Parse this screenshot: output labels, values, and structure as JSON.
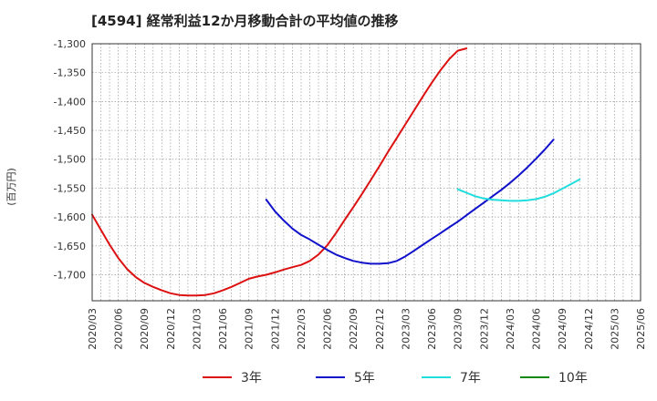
{
  "chart_data": {
    "type": "line",
    "title": "[4594]  経常利益12か月移動合計の平均値の推移",
    "ylabel": "(百万円)",
    "xlabel": "",
    "ylim": [
      -1745,
      -1300
    ],
    "y_ticks": [
      -1300,
      -1350,
      -1400,
      -1450,
      -1500,
      -1550,
      -1600,
      -1650,
      -1700
    ],
    "y_tick_labels": [
      "-1,300",
      "-1,350",
      "-1,400",
      "-1,450",
      "-1,500",
      "-1,550",
      "-1,600",
      "-1,650",
      "-1,700"
    ],
    "x_tick_labels": [
      "2020/03",
      "2020/06",
      "2020/09",
      "2020/12",
      "2021/03",
      "2021/06",
      "2021/09",
      "2021/12",
      "2022/03",
      "2022/06",
      "2022/09",
      "2022/12",
      "2023/03",
      "2023/06",
      "2023/09",
      "2023/12",
      "2024/03",
      "2024/06",
      "2024/09",
      "2024/12",
      "2025/03",
      "2025/06"
    ],
    "grid": true,
    "legend_position": "bottom",
    "series": [
      {
        "name": "3年",
        "color": "#dd1111",
        "start_index": 0,
        "values": [
          -1596,
          -1622,
          -1648,
          -1671,
          -1690,
          -1704,
          -1714,
          -1721,
          -1727,
          -1732,
          -1735,
          -1736,
          -1736,
          -1735,
          -1732,
          -1727,
          -1721,
          -1714,
          -1707,
          -1703,
          -1700,
          -1696,
          -1691,
          -1687,
          -1683,
          -1676,
          -1665,
          -1649,
          -1628,
          -1605,
          -1583,
          -1560,
          -1536,
          -1512,
          -1487,
          -1463,
          -1439,
          -1415,
          -1391,
          -1368,
          -1346,
          -1327,
          -1312,
          -1308
        ]
      },
      {
        "name": "5年",
        "color": "#1111cc",
        "start_index": 20,
        "values": [
          -1570,
          -1590,
          -1606,
          -1620,
          -1631,
          -1639,
          -1648,
          -1657,
          -1665,
          -1671,
          -1676,
          -1679,
          -1681,
          -1681,
          -1680,
          -1676,
          -1668,
          -1658,
          -1648,
          -1638,
          -1628,
          -1618,
          -1608,
          -1597,
          -1586,
          -1575,
          -1564,
          -1553,
          -1541,
          -1528,
          -1514,
          -1499,
          -1483,
          -1466
        ]
      },
      {
        "name": "7年",
        "color": "#22dddd",
        "start_index": 42,
        "values": [
          -1552,
          -1558,
          -1564,
          -1568,
          -1570,
          -1571,
          -1572,
          -1572,
          -1571,
          -1569,
          -1565,
          -1559,
          -1551,
          -1543,
          -1535
        ]
      },
      {
        "name": "10年",
        "color": "#118811",
        "start_index": 0,
        "values": []
      }
    ]
  }
}
